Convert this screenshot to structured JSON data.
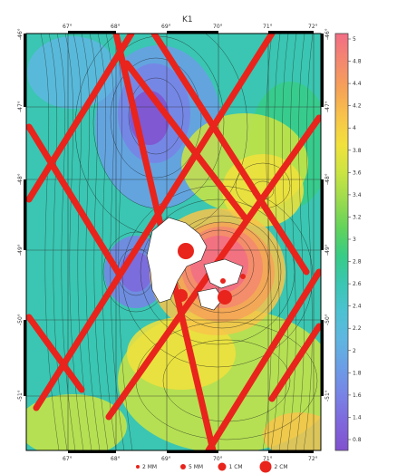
{
  "title": "K1",
  "lon_labels": [
    "67°",
    "68°",
    "69°",
    "70°",
    "71°",
    "72°"
  ],
  "lat_labels": [
    "-47°",
    "-48°",
    "-49°",
    "-50°",
    "-51°"
  ],
  "corner_labels": {
    "top_left": "-46°",
    "top_right": "-46°"
  },
  "colorbar": {
    "ticks": [
      "5",
      "4.8",
      "4.4",
      "4.2",
      "4",
      "3.8",
      "3.6",
      "3.4",
      "3.2",
      "3",
      "2.8",
      "2.6",
      "2.4",
      "2.2",
      "2",
      "1.8",
      "1.6",
      "1.4",
      "0.8"
    ],
    "colors": [
      "#f26d85",
      "#f4886f",
      "#f6a257",
      "#f8c44a",
      "#f2e13c",
      "#cbe442",
      "#9bdb4e",
      "#62d35b",
      "#37cc86",
      "#3ac6b2",
      "#4cc2d2",
      "#5fb6e0",
      "#6b9ee6",
      "#7883e6",
      "#7f67dc",
      "#8150cf"
    ]
  },
  "legend": {
    "items": [
      {
        "label": "2 MM"
      },
      {
        "label": "5 MM"
      },
      {
        "label": "1 CM"
      },
      {
        "label": "2 CM"
      }
    ],
    "marker_color": "#e8241c"
  },
  "track_color": "#e8241c",
  "land_color": "#ffffff"
}
